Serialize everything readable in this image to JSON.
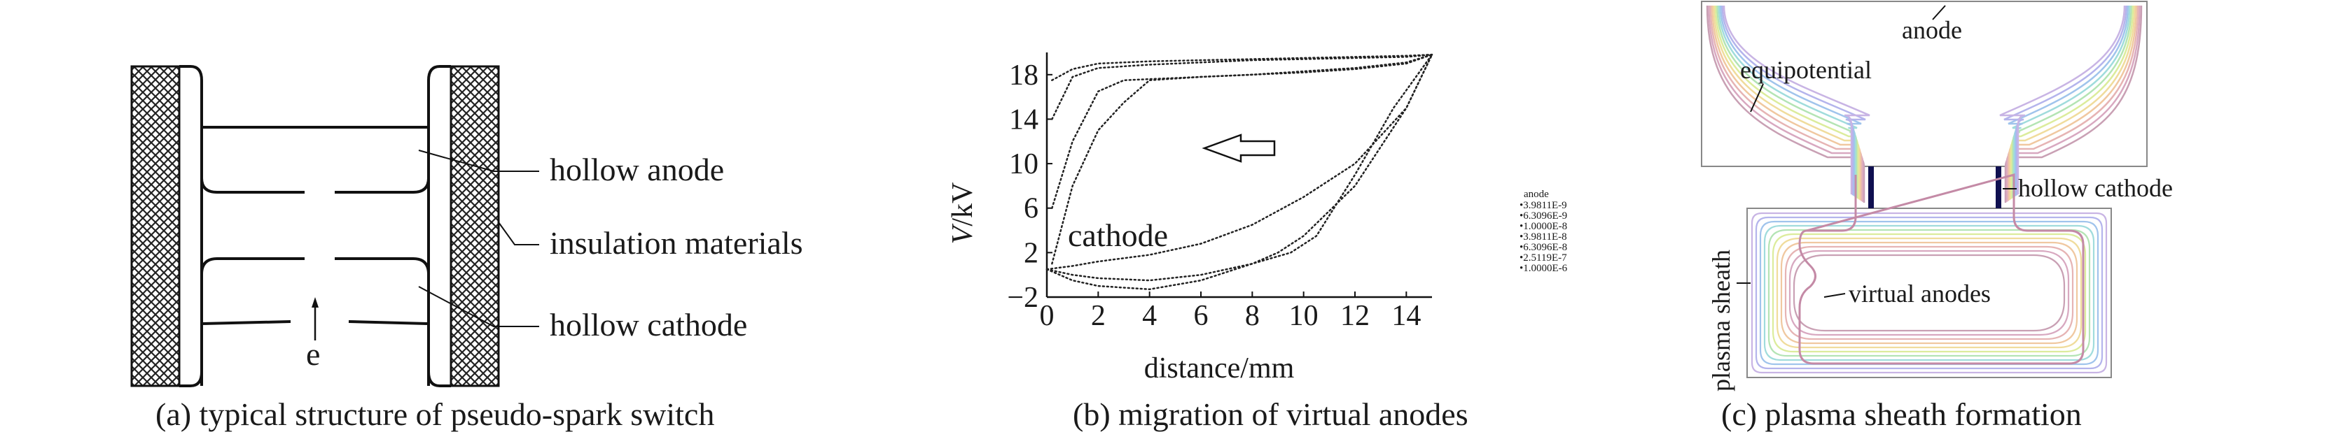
{
  "panel_a": {
    "caption": "(a) typical structure of pseudo-spark switch",
    "labels": {
      "hollow_anode": "hollow anode",
      "insulation": "insulation materials",
      "hollow_cathode": "hollow cathode",
      "electron": "e"
    }
  },
  "panel_b": {
    "caption": "(b) migration of virtual anodes",
    "cathode_label": "cathode",
    "legend": {
      "title": "anode",
      "entries": [
        "3.9811E-9",
        "6.3096E-9",
        "1.0000E-8",
        "3.9811E-8",
        "6.3096E-8",
        "2.5119E-7",
        "1.0000E-6"
      ]
    }
  },
  "panel_c": {
    "caption": "(c) plasma sheath formation",
    "labels": {
      "anode": "anode",
      "equipotential": "equipotential",
      "hollow_cathode": "hollow cathode",
      "virtual_anodes": "virtual anodes",
      "plasma_sheath": "plasma sheath"
    },
    "contour_colors": [
      "#c9a0b4",
      "#d8a8c0",
      "#e6b4b4",
      "#f0c8a0",
      "#f0dc9c",
      "#dcec9c",
      "#b4e4b4",
      "#a0dcdc",
      "#a0c4ec",
      "#b4b4ec",
      "#c8b4e4"
    ]
  },
  "chart_data": {
    "type": "line",
    "xlabel": "distance/mm",
    "ylabel": "V/kV",
    "xlim": [
      0,
      15
    ],
    "ylim": [
      -2,
      20
    ],
    "xticks": [
      0,
      2,
      4,
      6,
      8,
      10,
      12,
      14
    ],
    "yticks": [
      -2,
      2,
      6,
      10,
      14,
      18
    ],
    "series": [
      {
        "name": "3.9811E-9",
        "x": [
          0.2,
          1,
          2,
          4,
          6,
          8,
          10,
          12,
          14,
          15
        ],
        "y": [
          17.5,
          18.5,
          19,
          19.2,
          19.3,
          19.4,
          19.5,
          19.6,
          19.7,
          19.8
        ]
      },
      {
        "name": "6.3096E-9",
        "x": [
          0.2,
          1,
          2,
          4,
          6,
          8,
          10,
          12,
          14,
          15
        ],
        "y": [
          14,
          17.8,
          18.6,
          18.9,
          19.1,
          19.3,
          19.4,
          19.5,
          19.6,
          19.8
        ]
      },
      {
        "name": "1.0000E-8",
        "x": [
          0.2,
          1,
          2,
          3,
          4,
          6,
          8,
          10,
          12,
          14,
          15
        ],
        "y": [
          6,
          12,
          16.5,
          17.5,
          17.6,
          17.8,
          18,
          18.2,
          18.5,
          19,
          19.8
        ]
      },
      {
        "name": "3.9811E-8",
        "x": [
          0.2,
          1,
          2,
          3,
          4,
          6,
          8,
          10,
          12,
          14,
          15
        ],
        "y": [
          1,
          8,
          13,
          15.5,
          17.5,
          17.8,
          18,
          18.3,
          18.6,
          19.1,
          19.8
        ]
      },
      {
        "name": "6.3096E-8",
        "x": [
          0,
          1,
          2,
          4,
          6,
          8,
          10,
          12,
          14,
          15
        ],
        "y": [
          0.5,
          0.8,
          1.2,
          1.8,
          2.8,
          4.5,
          7,
          10,
          15,
          19.8
        ]
      },
      {
        "name": "2.5119E-7",
        "x": [
          0,
          1,
          2,
          4,
          6,
          8,
          9,
          10,
          12,
          14,
          15
        ],
        "y": [
          0.5,
          -0.5,
          -1,
          -1.3,
          -0.5,
          1,
          2,
          3.5,
          8,
          15,
          19.8
        ]
      },
      {
        "name": "1.0000E-6",
        "x": [
          0,
          1,
          2,
          4,
          6,
          8,
          9.5,
          10.5,
          12,
          13.5,
          15
        ],
        "y": [
          0.5,
          0,
          -0.3,
          -0.5,
          0,
          1,
          2,
          3.5,
          9,
          15,
          19.8
        ]
      }
    ]
  }
}
